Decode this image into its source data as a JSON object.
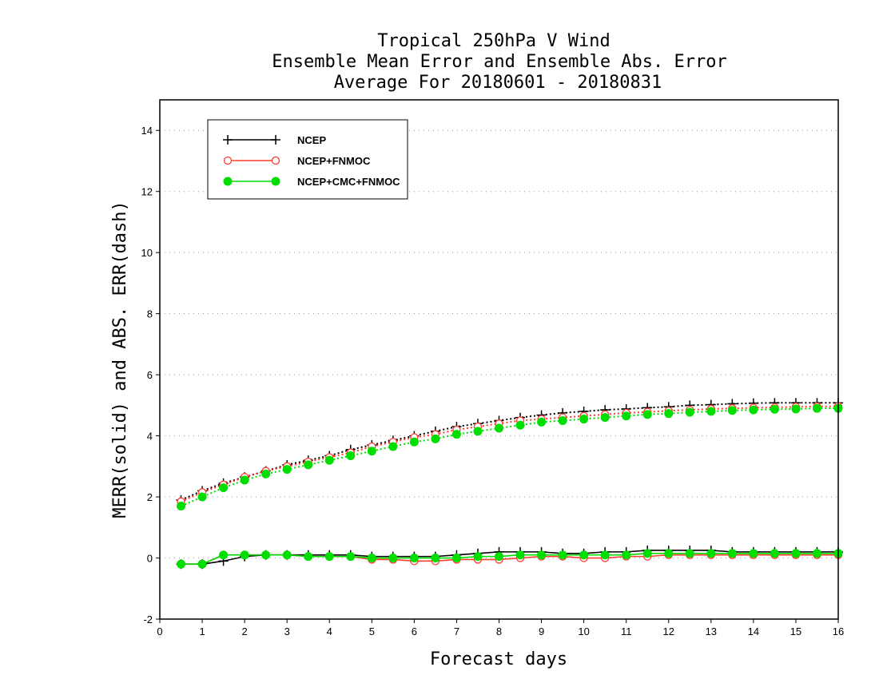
{
  "chart_data": {
    "type": "line",
    "title_lines": [
      "Tropical 250hPa V Wind",
      "Ensemble Mean Error and Ensemble Abs. Error",
      "Average For 20180601 - 20180831"
    ],
    "xlabel": "Forecast days",
    "ylabel": "MERR(solid) and ABS. ERR(dash)",
    "xlim": [
      0,
      16
    ],
    "ylim": [
      -2,
      15
    ],
    "xticks": [
      "0",
      "1",
      "2",
      "3",
      "4",
      "5",
      "6",
      "7",
      "8",
      "9",
      "10",
      "11",
      "12",
      "13",
      "14",
      "15",
      "16"
    ],
    "yticks": [
      "-2",
      "0",
      "2",
      "4",
      "6",
      "8",
      "10",
      "12",
      "14"
    ],
    "grid": "horizontal dotted",
    "legend_position": "top-left",
    "x": [
      0.5,
      1.0,
      1.5,
      2.0,
      2.5,
      3.0,
      3.5,
      4.0,
      4.5,
      5.0,
      5.5,
      6.0,
      6.5,
      7.0,
      7.5,
      8.0,
      8.5,
      9.0,
      9.5,
      10.0,
      10.5,
      11.0,
      11.5,
      12.0,
      12.5,
      13.0,
      13.5,
      14.0,
      14.5,
      15.0,
      15.5,
      16.0
    ],
    "series": [
      {
        "name": "NCEP",
        "color": "#000000",
        "marker": "plus",
        "merr": [
          -0.2,
          -0.2,
          -0.1,
          0.05,
          0.1,
          0.1,
          0.1,
          0.1,
          0.1,
          0.05,
          0.05,
          0.05,
          0.05,
          0.1,
          0.15,
          0.2,
          0.2,
          0.2,
          0.15,
          0.15,
          0.2,
          0.2,
          0.25,
          0.25,
          0.25,
          0.25,
          0.2,
          0.2,
          0.2,
          0.2,
          0.2,
          0.2
        ],
        "abs_err": [
          1.9,
          2.2,
          2.45,
          2.65,
          2.85,
          3.05,
          3.2,
          3.35,
          3.55,
          3.7,
          3.85,
          4.0,
          4.15,
          4.3,
          4.4,
          4.5,
          4.6,
          4.68,
          4.75,
          4.8,
          4.85,
          4.88,
          4.92,
          4.95,
          5.0,
          5.02,
          5.05,
          5.07,
          5.08,
          5.08,
          5.08,
          5.08
        ]
      },
      {
        "name": "NCEP+FNMOC",
        "color": "#ff3b30",
        "marker": "open-circle",
        "merr": [
          -0.2,
          -0.2,
          0.1,
          0.1,
          0.1,
          0.1,
          0.05,
          0.05,
          0.05,
          -0.05,
          -0.05,
          -0.1,
          -0.1,
          -0.05,
          -0.05,
          -0.05,
          0.0,
          0.05,
          0.05,
          0.0,
          0.0,
          0.05,
          0.05,
          0.1,
          0.1,
          0.1,
          0.1,
          0.1,
          0.1,
          0.1,
          0.1,
          0.1
        ],
        "abs_err": [
          1.85,
          2.15,
          2.4,
          2.65,
          2.85,
          3.0,
          3.15,
          3.3,
          3.45,
          3.65,
          3.8,
          3.95,
          4.05,
          4.2,
          4.3,
          4.4,
          4.5,
          4.55,
          4.6,
          4.65,
          4.7,
          4.75,
          4.78,
          4.82,
          4.85,
          4.88,
          4.9,
          4.92,
          4.93,
          4.95,
          4.96,
          4.97
        ]
      },
      {
        "name": "NCEP+CMC+FNMOC",
        "color": "#00dd00",
        "marker": "filled-circle",
        "merr": [
          -0.2,
          -0.2,
          0.1,
          0.1,
          0.1,
          0.1,
          0.05,
          0.05,
          0.05,
          0.0,
          0.0,
          0.0,
          0.0,
          0.0,
          0.05,
          0.05,
          0.1,
          0.1,
          0.1,
          0.1,
          0.1,
          0.1,
          0.15,
          0.15,
          0.15,
          0.15,
          0.15,
          0.15,
          0.15,
          0.15,
          0.15,
          0.15
        ],
        "abs_err": [
          1.7,
          2.0,
          2.3,
          2.55,
          2.75,
          2.9,
          3.05,
          3.2,
          3.35,
          3.5,
          3.65,
          3.8,
          3.9,
          4.05,
          4.15,
          4.25,
          4.35,
          4.45,
          4.5,
          4.55,
          4.6,
          4.65,
          4.7,
          4.73,
          4.77,
          4.8,
          4.83,
          4.85,
          4.87,
          4.88,
          4.9,
          4.9
        ]
      }
    ]
  }
}
